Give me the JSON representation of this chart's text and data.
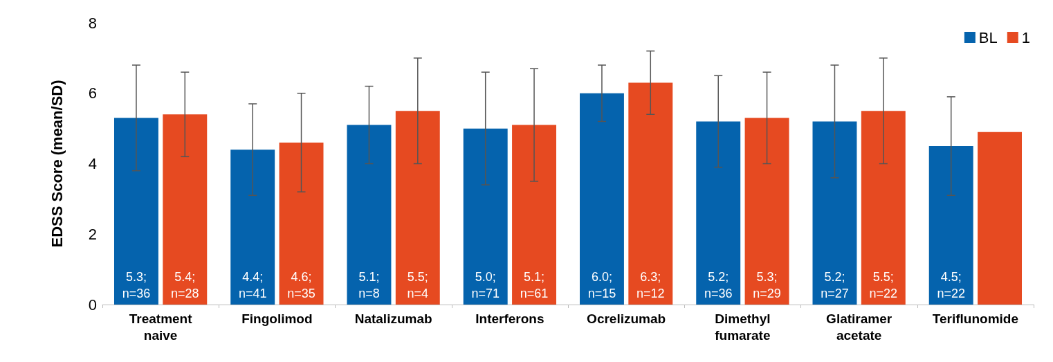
{
  "chart_data": {
    "type": "bar",
    "ylabel": "EDSS Score (mean/SD)",
    "categories": [
      "Treatment\nnaive",
      "Fingolimod",
      "Natalizumab",
      "Interferons",
      "Ocrelizumab",
      "Dimethyl\nfumarate",
      "Glatiramer\nacetate",
      "Teriflunomide"
    ],
    "series": [
      {
        "name": "BL",
        "color": "#0563ad",
        "values": [
          5.3,
          4.4,
          5.1,
          5.0,
          6.0,
          5.2,
          5.2,
          4.5
        ],
        "errors": [
          [
            3.8,
            6.8
          ],
          [
            3.1,
            5.7
          ],
          [
            4.0,
            6.2
          ],
          [
            3.4,
            6.6
          ],
          [
            5.2,
            6.8
          ],
          [
            3.9,
            6.5
          ],
          [
            3.6,
            6.8
          ],
          [
            3.1,
            5.9
          ]
        ],
        "value_labels": [
          "5.3;\nn=36",
          "4.4;\nn=41",
          "5.1;\nn=8",
          "5.0;\nn=71",
          "6.0;\nn=15",
          "5.2;\nn=36",
          "5.2;\nn=27",
          "4.5;\nn=22"
        ]
      },
      {
        "name": "1",
        "color": "#e64a21",
        "values": [
          5.4,
          4.6,
          5.5,
          5.1,
          6.3,
          5.3,
          5.5,
          4.9
        ],
        "errors": [
          [
            4.2,
            6.6
          ],
          [
            3.2,
            6.0
          ],
          [
            4.0,
            7.0
          ],
          [
            3.5,
            6.7
          ],
          [
            5.4,
            7.2
          ],
          [
            4.0,
            6.6
          ],
          [
            4.0,
            7.0
          ],
          null
        ],
        "value_labels": [
          "5.4;\nn=28",
          "4.6;\nn=35",
          "5.5;\nn=4",
          "5.1;\nn=61",
          "6.3;\nn=12",
          "5.3;\nn=29",
          "5.5;\nn=22",
          null
        ]
      }
    ],
    "ylim": [
      0,
      8
    ],
    "yticks": [
      0,
      2,
      4,
      6,
      8
    ],
    "grid": false,
    "legend": "top right"
  }
}
